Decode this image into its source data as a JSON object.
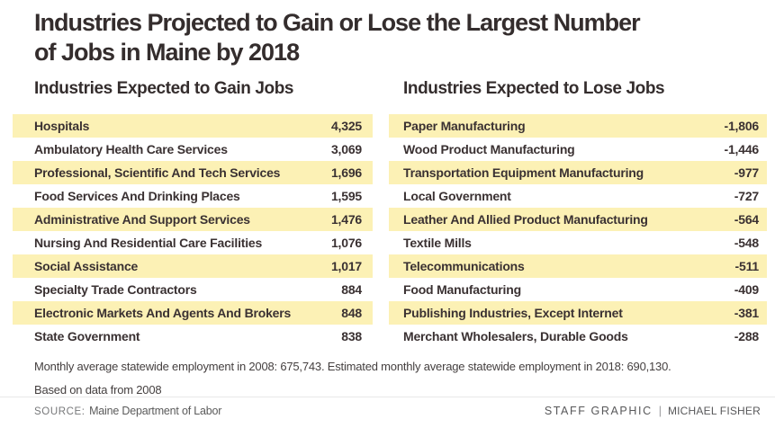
{
  "title": {
    "line1": "Industries Projected to Gain or Lose the Largest Number",
    "line2": "of Jobs in Maine by 2018"
  },
  "columns": [
    {
      "header": "Industries Expected to Gain Jobs",
      "rows": [
        {
          "label": "Hospitals",
          "value": "4,325"
        },
        {
          "label": "Ambulatory Health Care Services",
          "value": "3,069"
        },
        {
          "label": "Professional, Scientific And Tech Services",
          "value": "1,696"
        },
        {
          "label": "Food Services And Drinking Places",
          "value": "1,595"
        },
        {
          "label": "Administrative And Support Services",
          "value": "1,476"
        },
        {
          "label": "Nursing And Residential Care Facilities",
          "value": "1,076"
        },
        {
          "label": "Social Assistance",
          "value": "1,017"
        },
        {
          "label": "Specialty Trade Contractors",
          "value": "884"
        },
        {
          "label": "Electronic Markets And Agents And Brokers",
          "value": "848"
        },
        {
          "label": "State Government",
          "value": "838"
        }
      ]
    },
    {
      "header": "Industries Expected to Lose Jobs",
      "rows": [
        {
          "label": "Paper Manufacturing",
          "value": "-1,806"
        },
        {
          "label": "Wood Product Manufacturing",
          "value": "-1,446"
        },
        {
          "label": "Transportation Equipment Manufacturing",
          "value": "-977"
        },
        {
          "label": "Local Government",
          "value": "-727"
        },
        {
          "label": "Leather And Allied Product Manufacturing",
          "value": "-564"
        },
        {
          "label": "Textile Mills",
          "value": "-548"
        },
        {
          "label": "Telecommunications",
          "value": "-511"
        },
        {
          "label": "Food Manufacturing",
          "value": "-409"
        },
        {
          "label": "Publishing Industries, Except Internet",
          "value": "-381"
        },
        {
          "label": "Merchant Wholesalers, Durable Goods",
          "value": "-288"
        }
      ]
    }
  ],
  "notes": {
    "line1": "Monthly average statewide employment in 2008: 675,743.  Estimated monthly average statewide employment in 2018: 690,130.",
    "line2": "Based on data from 2008"
  },
  "footer": {
    "source_label": "SOURCE:",
    "source_value": "Maine Department of Labor",
    "credit_label": "STAFF GRAPHIC",
    "credit_divider": "|",
    "credit_name": "MICHAEL FISHER"
  },
  "colors": {
    "band_yellow": "#fcf1b5",
    "text_dark": "#3a3132",
    "text_gray": "#77787a"
  },
  "chart_data": {
    "type": "table",
    "title": "Industries Projected to Gain or Lose the Largest Number of Jobs in Maine by 2018",
    "tables": [
      {
        "title": "Industries Expected to Gain Jobs",
        "categories": [
          "Hospitals",
          "Ambulatory Health Care Services",
          "Professional, Scientific And Tech Services",
          "Food Services And Drinking Places",
          "Administrative And Support Services",
          "Nursing And Residential Care Facilities",
          "Social Assistance",
          "Specialty Trade Contractors",
          "Electronic Markets And Agents And Brokers",
          "State Government"
        ],
        "values": [
          4325,
          3069,
          1696,
          1595,
          1476,
          1076,
          1017,
          884,
          848,
          838
        ]
      },
      {
        "title": "Industries Expected to Lose Jobs",
        "categories": [
          "Paper Manufacturing",
          "Wood Product Manufacturing",
          "Transportation Equipment Manufacturing",
          "Local Government",
          "Leather And Allied Product Manufacturing",
          "Textile Mills",
          "Telecommunications",
          "Food Manufacturing",
          "Publishing Industries, Except Internet",
          "Merchant Wholesalers, Durable Goods"
        ],
        "values": [
          -1806,
          -1446,
          -977,
          -727,
          -564,
          -548,
          -511,
          -409,
          -381,
          -288
        ]
      }
    ],
    "notes": [
      "Monthly average statewide employment in 2008: 675,743. Estimated monthly average statewide employment in 2018: 690,130.",
      "Based on data from 2008"
    ],
    "source": "Maine Department of Labor"
  }
}
